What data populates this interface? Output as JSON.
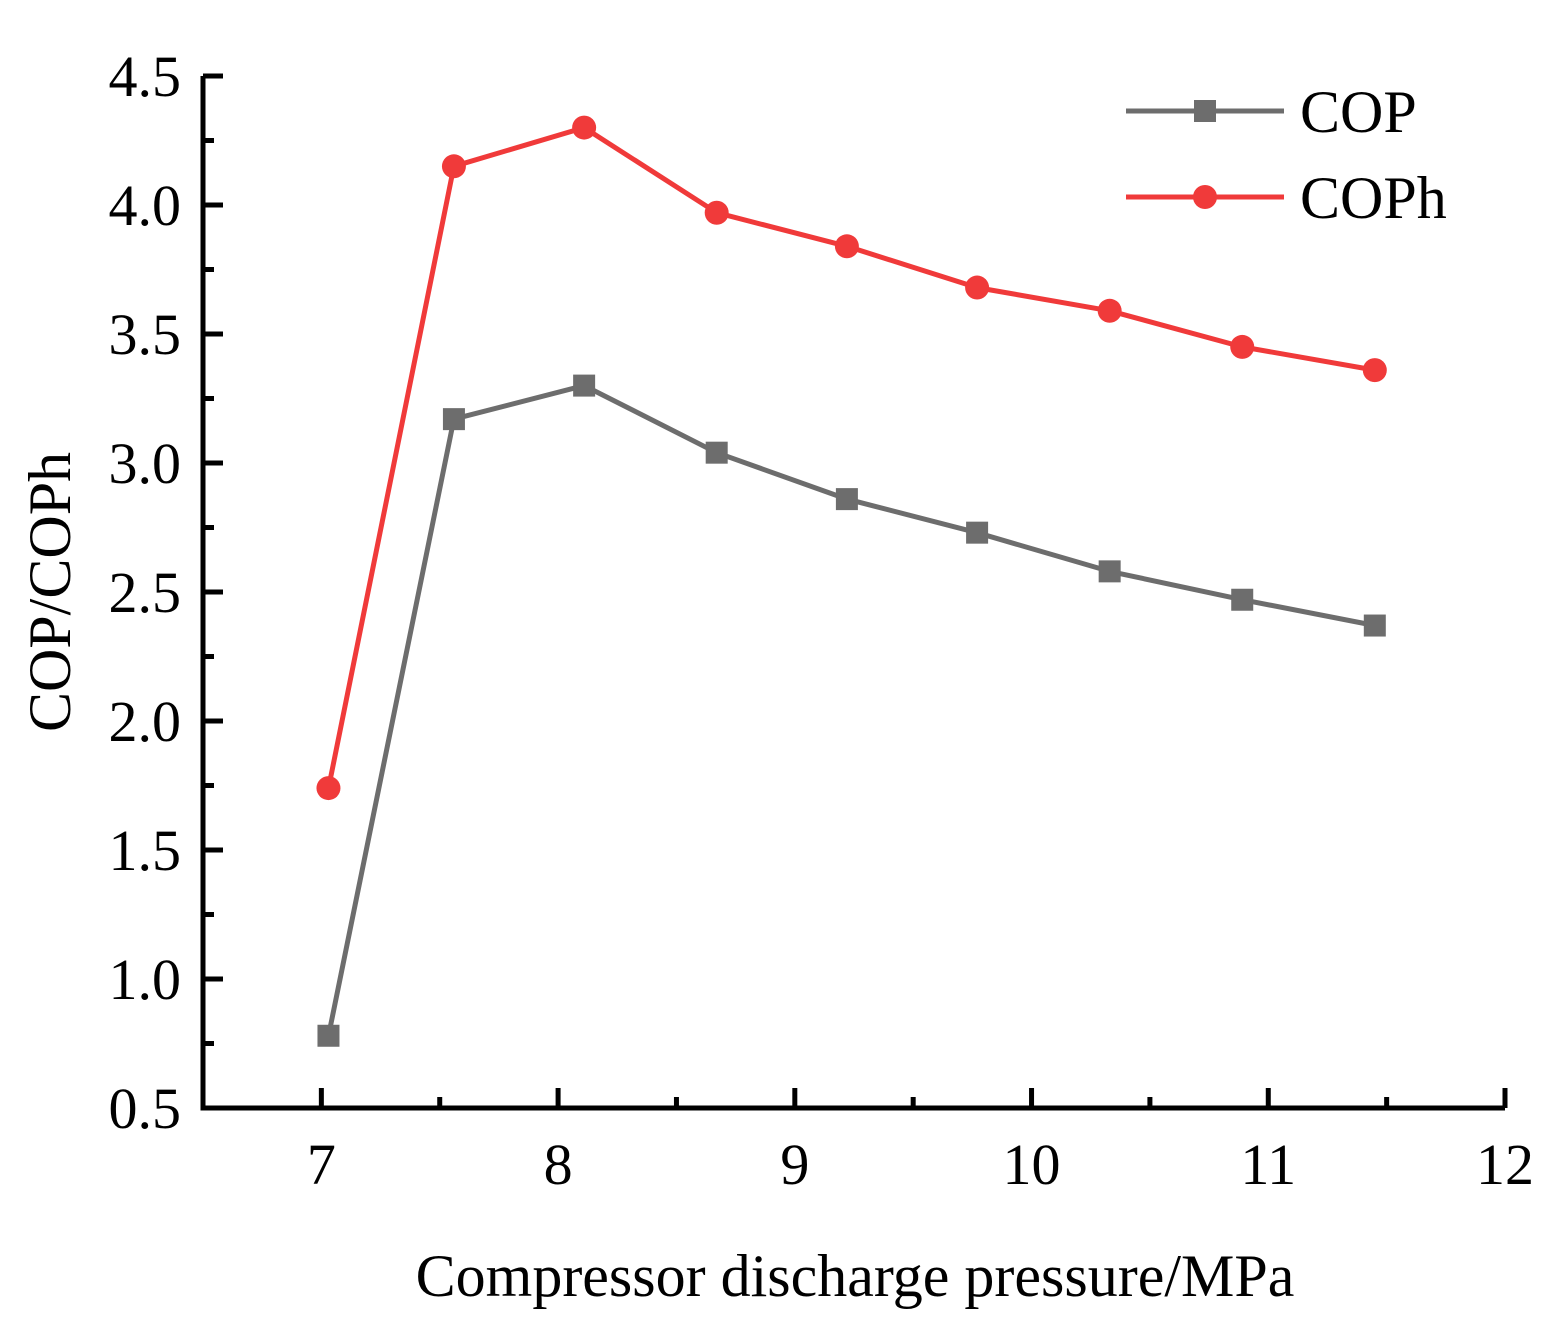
{
  "chart_data": {
    "type": "line",
    "title": "",
    "xlabel": "Compressor discharge pressure/MPa",
    "ylabel": "COP/COPh",
    "xlim": [
      6.5,
      12
    ],
    "ylim": [
      0.5,
      4.5
    ],
    "xticks": [
      7,
      8,
      9,
      10,
      11,
      12
    ],
    "xtick_labels": [
      "7",
      "8",
      "9",
      "10",
      "11",
      "12"
    ],
    "yticks": [
      0.5,
      1.0,
      1.5,
      2.0,
      2.5,
      3.0,
      3.5,
      4.0,
      4.5
    ],
    "ytick_labels": [
      "0.5",
      "1.0",
      "1.5",
      "2.0",
      "2.5",
      "3.0",
      "3.5",
      "4.0",
      "4.5"
    ],
    "grid": false,
    "legend_position": "top-right",
    "x": [
      7.03,
      7.56,
      8.11,
      8.67,
      9.22,
      9.77,
      10.33,
      10.89,
      11.45
    ],
    "series": [
      {
        "name": "COP",
        "color": "#6d6d6d",
        "marker": "square",
        "values": [
          0.78,
          3.17,
          3.3,
          3.04,
          2.86,
          2.73,
          2.58,
          2.47,
          2.37
        ]
      },
      {
        "name": "COPh",
        "color": "#f03a3a",
        "marker": "circle",
        "values": [
          1.74,
          4.15,
          4.3,
          3.97,
          3.84,
          3.68,
          3.59,
          3.45,
          3.36
        ]
      }
    ]
  }
}
